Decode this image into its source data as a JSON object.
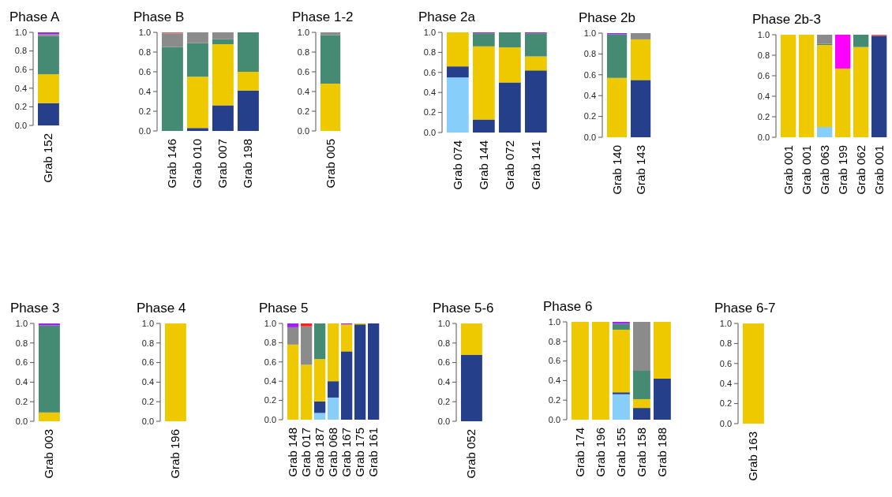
{
  "chart_data": [
    {
      "type": "bar",
      "stacked": true,
      "title": "Phase A",
      "categories": [
        "Grab 152"
      ],
      "ylim": [
        0,
        1
      ],
      "yticks": [
        {
          "value": 0,
          "label": "0.0"
        },
        {
          "value": 0.2,
          "label": "0.2"
        },
        {
          "value": 0.4,
          "label": "0.4"
        },
        {
          "value": 0.6,
          "label": "0.6"
        },
        {
          "value": 0.8,
          "label": "0.8"
        },
        {
          "value": 1,
          "label": "1.0"
        }
      ],
      "series": [
        {
          "color": "#253f8a",
          "values": [
            0.24
          ]
        },
        {
          "color": "#eec900",
          "values": [
            0.31
          ]
        },
        {
          "color": "#458b74",
          "values": [
            0.41
          ]
        },
        {
          "color": "#8b8b8b",
          "values": [
            0.02
          ]
        },
        {
          "color": "#a020f0",
          "values": [
            0.02
          ]
        }
      ]
    },
    {
      "type": "bar",
      "stacked": true,
      "title": "Phase B",
      "categories": [
        "Grab 146",
        "Grab 010",
        "Grab 007",
        "Grab 198"
      ],
      "ylim": [
        0,
        1
      ],
      "yticks": [
        {
          "value": 0,
          "label": "0.0"
        },
        {
          "value": 0.2,
          "label": "0.2"
        },
        {
          "value": 0.4,
          "label": "0.4"
        },
        {
          "value": 0.6,
          "label": "0.6"
        },
        {
          "value": 0.8,
          "label": "0.8"
        },
        {
          "value": 1,
          "label": "1.0"
        }
      ],
      "series": [
        {
          "color": "#253f8a",
          "values": [
            null,
            0.03,
            0.26,
            0.41
          ]
        },
        {
          "color": "#eec900",
          "values": [
            null,
            0.52,
            0.62,
            0.19
          ]
        },
        {
          "color": "#458b74",
          "values": [
            0.85,
            0.34,
            0.05,
            0.4
          ]
        },
        {
          "color": "#8b8b8b",
          "values": [
            0.14,
            0.11,
            0.07,
            null
          ]
        },
        {
          "color": "#f06060",
          "values": [
            0.01,
            null,
            null,
            null
          ]
        }
      ]
    },
    {
      "type": "bar",
      "stacked": true,
      "title": "Phase 1-2",
      "categories": [
        "Grab 005"
      ],
      "ylim": [
        0,
        1
      ],
      "yticks": [
        {
          "value": 0,
          "label": "0.0"
        },
        {
          "value": 0.2,
          "label": "0.2"
        },
        {
          "value": 0.4,
          "label": "0.4"
        },
        {
          "value": 0.6,
          "label": "0.6"
        },
        {
          "value": 0.8,
          "label": "0.8"
        },
        {
          "value": 1,
          "label": "1.0"
        }
      ],
      "series": [
        {
          "color": "#eec900",
          "values": [
            0.48
          ]
        },
        {
          "color": "#458b74",
          "values": [
            0.49
          ]
        },
        {
          "color": "#8b8b8b",
          "values": [
            0.03
          ]
        }
      ]
    },
    {
      "type": "bar",
      "stacked": true,
      "title": "Phase 2a",
      "categories": [
        "Grab 074",
        "Grab 144",
        "Grab 072",
        "Grab 141"
      ],
      "ylim": [
        0,
        1
      ],
      "yticks": [
        {
          "value": 0,
          "label": "0.0"
        },
        {
          "value": 0.2,
          "label": "0.2"
        },
        {
          "value": 0.4,
          "label": "0.4"
        },
        {
          "value": 0.6,
          "label": "0.6"
        },
        {
          "value": 0.8,
          "label": "0.8"
        },
        {
          "value": 1,
          "label": "1.0"
        }
      ],
      "series": [
        {
          "color": "#87cefa",
          "values": [
            0.55,
            null,
            null,
            null
          ]
        },
        {
          "color": "#253f8a",
          "values": [
            0.11,
            0.13,
            0.5,
            0.62
          ]
        },
        {
          "color": "#eec900",
          "values": [
            0.34,
            0.73,
            0.35,
            0.14
          ]
        },
        {
          "color": "#458b74",
          "values": [
            null,
            0.13,
            0.15,
            0.23
          ]
        },
        {
          "color": "#a020f0",
          "values": [
            null,
            0.01,
            null,
            0.01
          ]
        }
      ]
    },
    {
      "type": "bar",
      "stacked": true,
      "title": "Phase 2b",
      "categories": [
        "Grab 140",
        "Grab 143"
      ],
      "ylim": [
        0,
        1
      ],
      "yticks": [
        {
          "value": 0,
          "label": "0.0"
        },
        {
          "value": 0.2,
          "label": "0.2"
        },
        {
          "value": 0.4,
          "label": "0.4"
        },
        {
          "value": 0.6,
          "label": "0.6"
        },
        {
          "value": 0.8,
          "label": "0.8"
        },
        {
          "value": 1,
          "label": "1.0"
        }
      ],
      "series": [
        {
          "color": "#253f8a",
          "values": [
            null,
            0.55
          ]
        },
        {
          "color": "#eec900",
          "values": [
            0.57,
            0.39
          ]
        },
        {
          "color": "#458b74",
          "values": [
            0.42,
            null
          ]
        },
        {
          "color": "#8b8b8b",
          "values": [
            null,
            0.06
          ]
        },
        {
          "color": "#a020f0",
          "values": [
            0.01,
            null
          ]
        }
      ]
    },
    {
      "type": "bar",
      "stacked": true,
      "title": "Phase 2b-3",
      "categories": [
        "Grab 001",
        "Grab 001",
        "Grab 063",
        "Grab 199",
        "Grab 062",
        "Grab 001"
      ],
      "ylim": [
        0,
        1
      ],
      "yticks": [
        {
          "value": 0,
          "label": "0.0"
        },
        {
          "value": 0.2,
          "label": "0.2"
        },
        {
          "value": 0.4,
          "label": "0.4"
        },
        {
          "value": 0.6,
          "label": "0.6"
        },
        {
          "value": 0.8,
          "label": "0.8"
        },
        {
          "value": 1,
          "label": "1.0"
        }
      ],
      "series": [
        {
          "color": "#87cefa",
          "values": [
            null,
            null,
            0.1,
            null,
            null,
            null
          ]
        },
        {
          "color": "#253f8a",
          "values": [
            null,
            null,
            null,
            null,
            null,
            0.99
          ]
        },
        {
          "color": "#eec900",
          "values": [
            1,
            1,
            0.8,
            0.67,
            0.88,
            null
          ]
        },
        {
          "color": "#458b74",
          "values": [
            null,
            null,
            0.01,
            null,
            0.12,
            null
          ]
        },
        {
          "color": "#8b8b8b",
          "values": [
            null,
            null,
            0.09,
            null,
            null,
            null
          ]
        },
        {
          "color": "#f06060",
          "values": [
            null,
            null,
            null,
            null,
            null,
            0.01
          ]
        },
        {
          "color": "#ff00ff",
          "values": [
            null,
            null,
            null,
            0.33,
            null,
            null
          ]
        }
      ]
    },
    {
      "type": "bar",
      "stacked": true,
      "title": "Phase 3",
      "categories": [
        "Grab 003"
      ],
      "ylim": [
        0,
        1
      ],
      "yticks": [
        {
          "value": 0,
          "label": "0.0"
        },
        {
          "value": 0.2,
          "label": "0.2"
        },
        {
          "value": 0.4,
          "label": "0.4"
        },
        {
          "value": 0.6,
          "label": "0.6"
        },
        {
          "value": 0.8,
          "label": "0.8"
        },
        {
          "value": 1,
          "label": "1.0"
        }
      ],
      "series": [
        {
          "color": "#eec900",
          "values": [
            0.09
          ]
        },
        {
          "color": "#458b74",
          "values": [
            0.89
          ]
        },
        {
          "color": "#a020f0",
          "values": [
            0.02
          ]
        }
      ]
    },
    {
      "type": "bar",
      "stacked": true,
      "title": "Phase 4",
      "categories": [
        "Grab 196"
      ],
      "ylim": [
        0,
        1
      ],
      "yticks": [
        {
          "value": 0,
          "label": "0.0"
        },
        {
          "value": 0.2,
          "label": "0.2"
        },
        {
          "value": 0.4,
          "label": "0.4"
        },
        {
          "value": 0.6,
          "label": "0.6"
        },
        {
          "value": 0.8,
          "label": "0.8"
        },
        {
          "value": 1,
          "label": "1.0"
        }
      ],
      "series": [
        {
          "color": "#eec900",
          "values": [
            1
          ]
        }
      ]
    },
    {
      "type": "bar",
      "stacked": true,
      "title": "Phase 5",
      "categories": [
        "Grab 148",
        "Grab 017",
        "Grab 187",
        "Grab 068",
        "Grab 167",
        "Grab 175",
        "Grab 161"
      ],
      "ylim": [
        0,
        1
      ],
      "yticks": [
        {
          "value": 0,
          "label": "0.0"
        },
        {
          "value": 0.2,
          "label": "0.2"
        },
        {
          "value": 0.4,
          "label": "0.4"
        },
        {
          "value": 0.6,
          "label": "0.6"
        },
        {
          "value": 0.8,
          "label": "0.8"
        },
        {
          "value": 1,
          "label": "1.0"
        }
      ],
      "series": [
        {
          "color": "#87cefa",
          "values": [
            null,
            null,
            0.07,
            0.23,
            null,
            null,
            null
          ]
        },
        {
          "color": "#253f8a",
          "values": [
            null,
            null,
            0.12,
            0.17,
            0.71,
            0.99,
            1
          ]
        },
        {
          "color": "#eec900",
          "values": [
            0.78,
            0.57,
            0.44,
            0.6,
            0.28,
            0.01,
            null
          ]
        },
        {
          "color": "#458b74",
          "values": [
            null,
            null,
            0.37,
            null,
            null,
            null,
            null
          ]
        },
        {
          "color": "#8b8b8b",
          "values": [
            0.18,
            0.4,
            null,
            null,
            null,
            null,
            null
          ]
        },
        {
          "color": "#ff2020",
          "values": [
            null,
            0.03,
            null,
            null,
            null,
            null,
            null
          ]
        },
        {
          "color": "#a020f0",
          "values": [
            0.04,
            null,
            null,
            null,
            0.01,
            null,
            null
          ]
        }
      ]
    },
    {
      "type": "bar",
      "stacked": true,
      "title": "Phase 5-6",
      "categories": [
        "Grab 052"
      ],
      "ylim": [
        0,
        1
      ],
      "yticks": [
        {
          "value": 0,
          "label": "0.0"
        },
        {
          "value": 0.2,
          "label": "0.2"
        },
        {
          "value": 0.4,
          "label": "0.4"
        },
        {
          "value": 0.6,
          "label": "0.6"
        },
        {
          "value": 0.8,
          "label": "0.8"
        },
        {
          "value": 1,
          "label": "1.0"
        }
      ],
      "series": [
        {
          "color": "#253f8a",
          "values": [
            0.68
          ]
        },
        {
          "color": "#eec900",
          "values": [
            0.32
          ]
        }
      ]
    },
    {
      "type": "bar",
      "stacked": true,
      "title": "Phase 6",
      "categories": [
        "Grab 174",
        "Grab 196",
        "Grab 155",
        "Grab 158",
        "Grab 188"
      ],
      "ylim": [
        0,
        1
      ],
      "yticks": [
        {
          "value": 0,
          "label": "0.0"
        },
        {
          "value": 0.2,
          "label": "0.2"
        },
        {
          "value": 0.4,
          "label": "0.4"
        },
        {
          "value": 0.6,
          "label": "0.6"
        },
        {
          "value": 0.8,
          "label": "0.8"
        },
        {
          "value": 1,
          "label": "1.0"
        }
      ],
      "series": [
        {
          "color": "#87cefa",
          "values": [
            null,
            null,
            0.26,
            null,
            null
          ]
        },
        {
          "color": "#253f8a",
          "values": [
            null,
            null,
            0.02,
            0.12,
            0.42
          ]
        },
        {
          "color": "#eec900",
          "values": [
            1,
            1,
            0.64,
            0.09,
            0.58
          ]
        },
        {
          "color": "#458b74",
          "values": [
            null,
            null,
            0.06,
            0.29,
            null
          ]
        },
        {
          "color": "#8b8b8b",
          "values": [
            null,
            null,
            null,
            0.5,
            null
          ]
        },
        {
          "color": "#a020f0",
          "values": [
            null,
            null,
            0.02,
            null,
            null
          ]
        }
      ]
    },
    {
      "type": "bar",
      "stacked": true,
      "title": "Phase 6-7",
      "categories": [
        "Grab 163"
      ],
      "ylim": [
        0,
        1
      ],
      "yticks": [
        {
          "value": 0,
          "label": "0.0"
        },
        {
          "value": 0.2,
          "label": "0.2"
        },
        {
          "value": 0.4,
          "label": "0.4"
        },
        {
          "value": 0.6,
          "label": "0.6"
        },
        {
          "value": 0.8,
          "label": "0.8"
        },
        {
          "value": 1,
          "label": "1.0"
        }
      ],
      "series": [
        {
          "color": "#eec900",
          "values": [
            1
          ]
        }
      ]
    }
  ]
}
